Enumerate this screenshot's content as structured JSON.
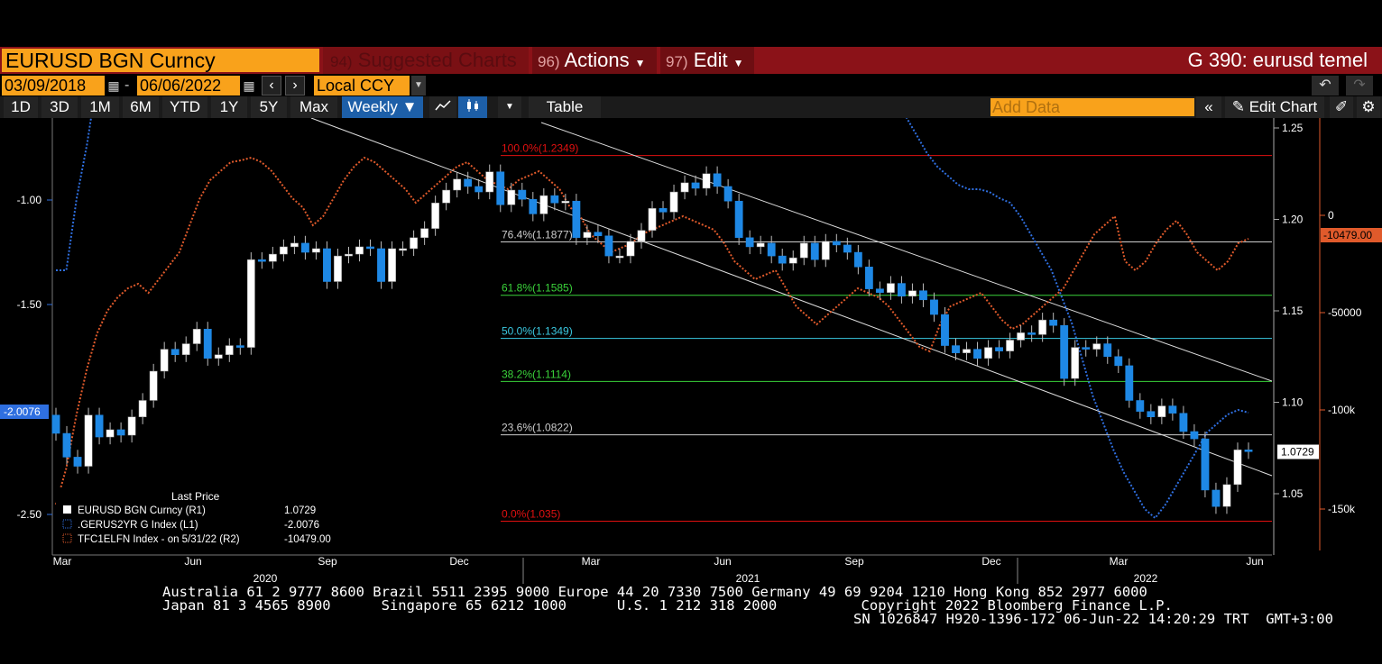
{
  "header": {
    "ticker": "EURUSD BGN Curncy",
    "suggested_num": "94)",
    "suggested_label": "Suggested Charts",
    "actions_num": "96)",
    "actions_label": "Actions",
    "edit_num": "97)",
    "edit_label": "Edit",
    "graph_title": "G 390: eurusd temel"
  },
  "controls": {
    "start_date": "03/09/2018",
    "end_date": "06/06/2022",
    "currency": "Local CCY",
    "periods": [
      "1D",
      "3D",
      "1M",
      "6M",
      "YTD",
      "1Y",
      "5Y",
      "Max"
    ],
    "frequency": "Weekly",
    "table_label": "Table",
    "add_data_placeholder": "Add Data",
    "edit_chart_label": "Edit Chart"
  },
  "colors": {
    "accent_orange": "#f9a21b",
    "header_red": "#8b1218",
    "bar_blue": "#1e88e5",
    "series_l1": "#2f6fe0",
    "series_r2": "#e05a2b",
    "fib_red": "#e01010",
    "fib_green": "#3ad23a",
    "fib_cyan": "#3ac8e0"
  },
  "chart_data": {
    "type": "line",
    "x_labels": [
      "Mar",
      "Jun",
      "Sep",
      "Dec",
      "Mar",
      "Jun",
      "Sep",
      "Dec",
      "Mar",
      "Jun"
    ],
    "year_labels": [
      "2020",
      "2021",
      "2022"
    ],
    "left_axis": {
      "ticks": [
        "-1.00",
        "-1.50",
        "-2.50"
      ],
      "current": "-2.0076"
    },
    "right1_axis": {
      "ticks": [
        "1.25",
        "1.20",
        "1.15",
        "1.10",
        "1.05"
      ],
      "current": "1.0729"
    },
    "right2_axis": {
      "ticks": [
        "0",
        "-50000",
        "-100k",
        "-150k"
      ],
      "current": "-10479.00"
    },
    "fib_levels": [
      {
        "label": "100.0%(1.2349)",
        "value": 1.2349
      },
      {
        "label": "76.4%(1.1877)",
        "value": 1.1877
      },
      {
        "label": "61.8%(1.1585)",
        "value": 1.1585
      },
      {
        "label": "50.0%(1.1349)",
        "value": 1.1349
      },
      {
        "label": "38.2%(1.1114)",
        "value": 1.1114
      },
      {
        "label": "23.6%(1.0822)",
        "value": 1.0822
      },
      {
        "label": "0.0%(1.035)",
        "value": 1.035
      }
    ],
    "legend": {
      "title": "Last Price",
      "items": [
        {
          "name": "EURUSD BGN Curncy  (R1)",
          "value": "1.0729"
        },
        {
          "name": ".GERUS2YR G Index  (L1)",
          "value": "-2.0076"
        },
        {
          "name": "TFC1ELFN Index -  on 5/31/22  (R2)",
          "value": "-10479.00"
        }
      ]
    },
    "eurusd_weekly_close": [
      1.083,
      1.07,
      1.065,
      1.093,
      1.081,
      1.085,
      1.082,
      1.092,
      1.101,
      1.117,
      1.129,
      1.126,
      1.132,
      1.14,
      1.124,
      1.126,
      1.131,
      1.13,
      1.178,
      1.177,
      1.181,
      1.185,
      1.187,
      1.182,
      1.184,
      1.166,
      1.18,
      1.181,
      1.185,
      1.184,
      1.166,
      1.184,
      1.184,
      1.19,
      1.195,
      1.209,
      1.216,
      1.222,
      1.218,
      1.215,
      1.226,
      1.208,
      1.216,
      1.211,
      1.203,
      1.213,
      1.209,
      1.21,
      1.19,
      1.193,
      1.191,
      1.18,
      1.18,
      1.188,
      1.194,
      1.206,
      1.204,
      1.215,
      1.22,
      1.217,
      1.225,
      1.218,
      1.21,
      1.19,
      1.185,
      1.187,
      1.18,
      1.176,
      1.179,
      1.187,
      1.178,
      1.188,
      1.186,
      1.182,
      1.174,
      1.162,
      1.16,
      1.165,
      1.158,
      1.161,
      1.156,
      1.148,
      1.131,
      1.127,
      1.129,
      1.124,
      1.13,
      1.128,
      1.134,
      1.138,
      1.137,
      1.145,
      1.142,
      1.113,
      1.13,
      1.129,
      1.132,
      1.125,
      1.12,
      1.101,
      1.095,
      1.092,
      1.098,
      1.094,
      1.084,
      1.08,
      1.052,
      1.043,
      1.055,
      1.074,
      1.073
    ]
  }
}
